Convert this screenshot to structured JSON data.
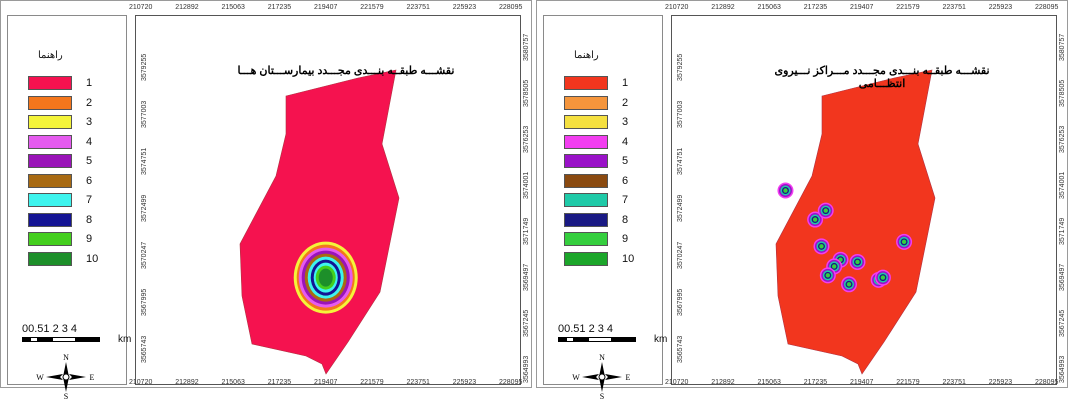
{
  "panels": [
    {
      "title": "نقشـــه طبقــه بنـــدی مجـــدد بیمارســـتان هـــا",
      "legend_title": "راهنما",
      "legend": [
        {
          "label": "1",
          "color": "#f5124f"
        },
        {
          "label": "2",
          "color": "#f4761c"
        },
        {
          "label": "3",
          "color": "#f4f43a"
        },
        {
          "label": "4",
          "color": "#e55bef"
        },
        {
          "label": "5",
          "color": "#9a14b8"
        },
        {
          "label": "6",
          "color": "#a86a12"
        },
        {
          "label": "7",
          "color": "#3ef4ee"
        },
        {
          "label": "8",
          "color": "#141494"
        },
        {
          "label": "9",
          "color": "#44cf1e"
        },
        {
          "label": "10",
          "color": "#1d8f2a"
        }
      ],
      "polygon_fill": "#f5124f",
      "hotspots": [
        {
          "type": "concentric",
          "x": 219300,
          "y": 3569400
        }
      ]
    },
    {
      "title": "نقشـــه طبقــه بنـــدی مجـــدد مـــراکز نـــیروی انتظـــامی",
      "legend_title": "راهنما",
      "legend": [
        {
          "label": "1",
          "color": "#f2361e"
        },
        {
          "label": "2",
          "color": "#f5953c"
        },
        {
          "label": "3",
          "color": "#f5e040"
        },
        {
          "label": "4",
          "color": "#f23ef0"
        },
        {
          "label": "5",
          "color": "#9a12c8"
        },
        {
          "label": "6",
          "color": "#8a4a10"
        },
        {
          "label": "7",
          "color": "#1fcaa8"
        },
        {
          "label": "8",
          "color": "#1a1a84"
        },
        {
          "label": "9",
          "color": "#35cf3e"
        },
        {
          "label": "10",
          "color": "#1ca62a"
        }
      ],
      "polygon_fill": "#f2361e",
      "hotspots": [
        {
          "type": "dot",
          "x": 215700,
          "y": 3573300
        },
        {
          "type": "dot",
          "x": 217100,
          "y": 3572000
        },
        {
          "type": "dot",
          "x": 217600,
          "y": 3572400
        },
        {
          "type": "dot",
          "x": 217400,
          "y": 3570800
        },
        {
          "type": "dot",
          "x": 218300,
          "y": 3570200
        },
        {
          "type": "dot",
          "x": 218000,
          "y": 3569900
        },
        {
          "type": "dot",
          "x": 219100,
          "y": 3570100
        },
        {
          "type": "dot",
          "x": 217700,
          "y": 3569500
        },
        {
          "type": "dot",
          "x": 218700,
          "y": 3569100
        },
        {
          "type": "dot",
          "x": 220100,
          "y": 3569300
        },
        {
          "type": "dot",
          "x": 220300,
          "y": 3569400
        },
        {
          "type": "dot",
          "x": 221300,
          "y": 3571000
        }
      ]
    }
  ],
  "x_ticks": [
    "210720",
    "212892",
    "215063",
    "217235",
    "219407",
    "221579",
    "223751",
    "225923",
    "228095"
  ],
  "y_ticks_left": [
    "3579255",
    "3577003",
    "3574751",
    "3572499",
    "3570247",
    "3567995",
    "3565743"
  ],
  "y_ticks_right": [
    "3580757",
    "3578505",
    "3576253",
    "3574001",
    "3571749",
    "3569497",
    "3567245",
    "3564993"
  ],
  "scale": {
    "labels": "00.51     2       3       4",
    "unit": "km"
  },
  "north": {
    "n": "N",
    "s": "S",
    "e": "E",
    "w": "W"
  }
}
